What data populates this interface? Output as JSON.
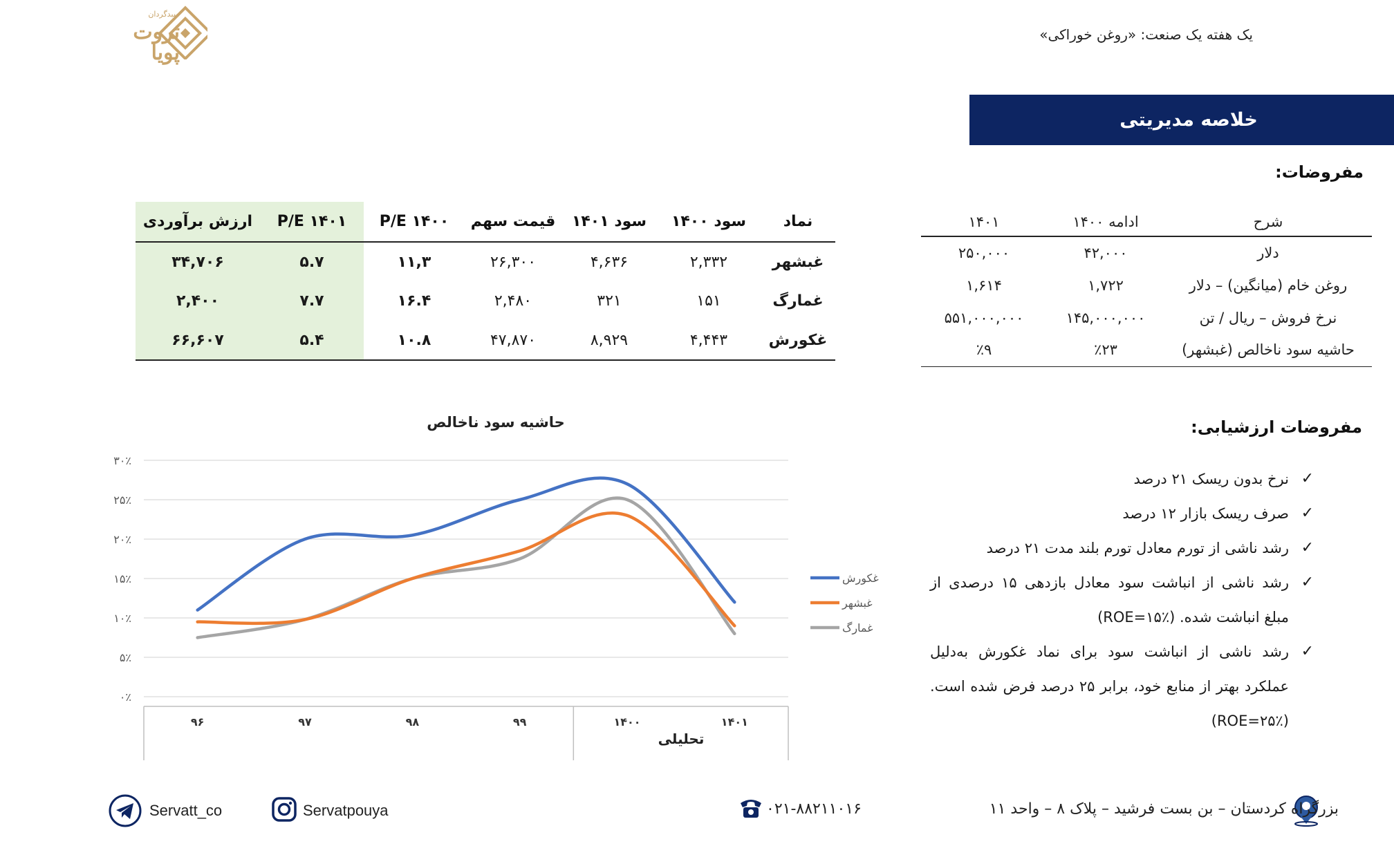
{
  "header": {
    "title": "یک هفته یک صنعت: «روغن خوراکی»",
    "logo_text": "ثروت پویا",
    "logo_tagline": "سبدگردان"
  },
  "title_bar": "خلاصه مدیریتی",
  "assumptions": {
    "heading": "مفروضات:",
    "columns": [
      "شرح",
      "ادامه ۱۴۰۰",
      "۱۴۰۱"
    ],
    "rows": [
      {
        "desc": "دلار",
        "y1400": "۴۲,۰۰۰",
        "y1401": "۲۵۰,۰۰۰"
      },
      {
        "desc": "روغن خام (میانگین) – دلار",
        "y1400": "۱,۷۲۲",
        "y1401": "۱,۶۱۴"
      },
      {
        "desc": "نرخ فروش – ریال / تن",
        "y1400": "۱۴۵,۰۰۰,۰۰۰",
        "y1401": "۵۵۱,۰۰۰,۰۰۰"
      },
      {
        "desc": "حاشیه سود ناخالص (غبشهر)",
        "y1400": "٪۲۳",
        "y1401": "٪۹"
      }
    ]
  },
  "valuation_table": {
    "columns": [
      "نماد",
      "سود ۱۴۰۰",
      "سود ۱۴۰۱",
      "قیمت سهم",
      "P/E ۱۴۰۰",
      "P/E ۱۴۰۱",
      "ارزش برآوردی"
    ],
    "rows": [
      {
        "symbol": "غبشهر",
        "p1400": "۲,۳۳۲",
        "p1401": "۴,۶۳۶",
        "price": "۲۶,۳۰۰",
        "pe1400": "۱۱,۳",
        "pe1401": "۵.۷",
        "value": "۳۴,۷۰۶"
      },
      {
        "symbol": "غمارگ",
        "p1400": "۱۵۱",
        "p1401": "۳۲۱",
        "price": "۲,۴۸۰",
        "pe1400": "۱۶.۴",
        "pe1401": "۷.۷",
        "value": "۲,۴۰۰"
      },
      {
        "symbol": "غکورش",
        "p1400": "۴,۴۴۳",
        "p1401": "۸,۹۲۹",
        "price": "۴۷,۸۷۰",
        "pe1400": "۱۰.۸",
        "pe1401": "۵.۴",
        "value": "۶۶,۶۰۷"
      }
    ]
  },
  "valuation_assumptions": {
    "heading": "مفروضات ارزشیابی:",
    "items": [
      "نرخ بدون ریسک ۲۱ درصد",
      "صرف ریسک بازار ۱۲ درصد",
      "رشد ناشی از تورم معادل تورم بلند مدت  ۲۱ درصد",
      "رشد ناشی از انباشت سود معادل بازدهی ۱۵ درصدی از مبلغ انباشت شده. (ROE=۱۵٪)",
      "رشد ناشی از انباشت سود برای نماد غکورش به‌دلیل عملکرد بهتر از منابع خود، برابر ۲۵ درصد فرض شده است. (ROE=۲۵٪)"
    ]
  },
  "chart_data": {
    "type": "line",
    "title": "حاشیه سود ناخالص",
    "xlabel": "تحلیلی",
    "ylabel": "",
    "categories": [
      "۹۶",
      "۹۷",
      "۹۸",
      "۹۹",
      "۱۴۰۰",
      "۱۴۰۱"
    ],
    "y_ticks": [
      "۰٪",
      "۵٪",
      "۱۰٪",
      "۱۵٪",
      "۲۰٪",
      "۲۵٪",
      "۳۰٪"
    ],
    "ylim": [
      0,
      30
    ],
    "grid": true,
    "legend_position": "right",
    "series": [
      {
        "name": "غکورش",
        "color": "#4472c4",
        "values": [
          11,
          20,
          20.5,
          25,
          27,
          12
        ]
      },
      {
        "name": "غبشهر",
        "color": "#ed7d31",
        "values": [
          9.5,
          9.8,
          15,
          18.5,
          23,
          9
        ]
      },
      {
        "name": "غمارگ",
        "color": "#a5a5a5",
        "values": [
          7.5,
          9.8,
          15,
          17.5,
          25,
          8
        ]
      }
    ]
  },
  "footer": {
    "address": "بزرگراه کردستان – بن بست فرشید – پلاک ۸ – واحد ۱۱",
    "phone": "۰۲۱-۸۸۲۱۱۰۱۶",
    "instagram": "Servatpouya",
    "telegram": "Servatt_co"
  },
  "colors": {
    "title_bar": "#0d2562",
    "highlight": "#e4f1db",
    "logo_gold": "#c9a46a"
  }
}
